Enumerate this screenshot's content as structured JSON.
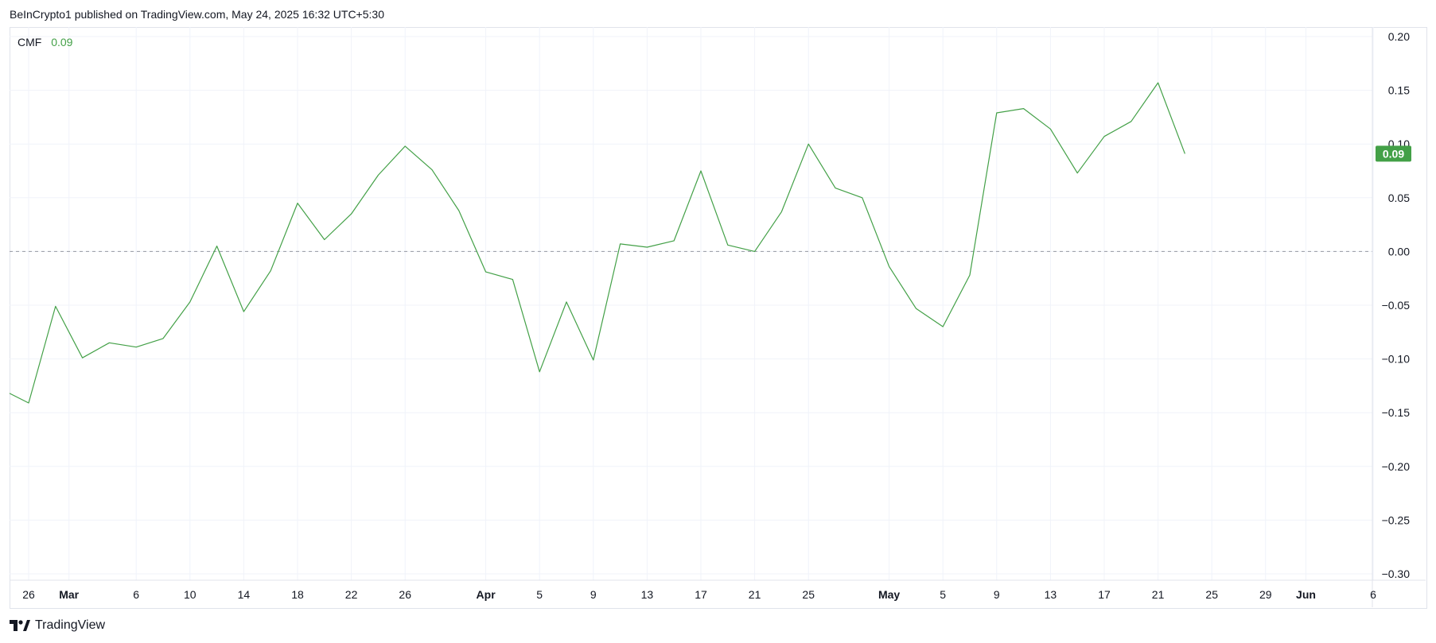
{
  "header": {
    "published": "BeInCrypto1 published on TradingView.com, May 24, 2025 16:32 UTC+5:30"
  },
  "legend": {
    "name": "CMF",
    "value": "0.09"
  },
  "footer": {
    "brand": "TradingView"
  },
  "colors": {
    "line": "#43a047",
    "last_badge": "#43a047",
    "zero_line": "#9598a1",
    "grid": "#f0f3fa"
  },
  "chart_data": {
    "type": "line",
    "title": "",
    "xlabel": "",
    "ylabel": "",
    "ylim": [
      -0.3,
      0.2
    ],
    "y_ticks": [
      "0.20",
      "0.15",
      "0.10",
      "0.05",
      "0.00",
      "−0.05",
      "−0.10",
      "−0.15",
      "−0.20",
      "−0.25",
      "−0.30"
    ],
    "y_tick_values": [
      0.2,
      0.15,
      0.1,
      0.05,
      0.0,
      -0.05,
      -0.1,
      -0.15,
      -0.2,
      -0.25,
      -0.3
    ],
    "x_ticks": [
      {
        "label": "26",
        "date": "2025-02-26",
        "bold": false
      },
      {
        "label": "Mar",
        "date": "2025-03-01",
        "bold": true
      },
      {
        "label": "6",
        "date": "2025-03-06",
        "bold": false
      },
      {
        "label": "10",
        "date": "2025-03-10",
        "bold": false
      },
      {
        "label": "14",
        "date": "2025-03-14",
        "bold": false
      },
      {
        "label": "18",
        "date": "2025-03-18",
        "bold": false
      },
      {
        "label": "22",
        "date": "2025-03-22",
        "bold": false
      },
      {
        "label": "26",
        "date": "2025-03-26",
        "bold": false
      },
      {
        "label": "Apr",
        "date": "2025-04-01",
        "bold": true
      },
      {
        "label": "5",
        "date": "2025-04-05",
        "bold": false
      },
      {
        "label": "9",
        "date": "2025-04-09",
        "bold": false
      },
      {
        "label": "13",
        "date": "2025-04-13",
        "bold": false
      },
      {
        "label": "17",
        "date": "2025-04-17",
        "bold": false
      },
      {
        "label": "21",
        "date": "2025-04-21",
        "bold": false
      },
      {
        "label": "25",
        "date": "2025-04-25",
        "bold": false
      },
      {
        "label": "May",
        "date": "2025-05-01",
        "bold": true
      },
      {
        "label": "5",
        "date": "2025-05-05",
        "bold": false
      },
      {
        "label": "9",
        "date": "2025-05-09",
        "bold": false
      },
      {
        "label": "13",
        "date": "2025-05-13",
        "bold": false
      },
      {
        "label": "17",
        "date": "2025-05-17",
        "bold": false
      },
      {
        "label": "21",
        "date": "2025-05-21",
        "bold": false
      },
      {
        "label": "25",
        "date": "2025-05-25",
        "bold": false
      },
      {
        "label": "29",
        "date": "2025-05-29",
        "bold": false
      },
      {
        "label": "Jun",
        "date": "2025-06-01",
        "bold": true
      },
      {
        "label": "6",
        "date": "2025-06-06",
        "bold": false
      }
    ],
    "x_range": [
      "2025-02-25",
      "2025-06-06"
    ],
    "zero_line": 0.0,
    "last_value_label": "0.09",
    "series": [
      {
        "name": "CMF",
        "color": "#43a047",
        "points": [
          {
            "x": "2025-02-24",
            "y": -0.132
          },
          {
            "x": "2025-02-26",
            "y": -0.141
          },
          {
            "x": "2025-02-28",
            "y": -0.051
          },
          {
            "x": "2025-03-02",
            "y": -0.099
          },
          {
            "x": "2025-03-04",
            "y": -0.085
          },
          {
            "x": "2025-03-06",
            "y": -0.089
          },
          {
            "x": "2025-03-08",
            "y": -0.081
          },
          {
            "x": "2025-03-10",
            "y": -0.047
          },
          {
            "x": "2025-03-12",
            "y": 0.005
          },
          {
            "x": "2025-03-14",
            "y": -0.056
          },
          {
            "x": "2025-03-16",
            "y": -0.018
          },
          {
            "x": "2025-03-18",
            "y": 0.045
          },
          {
            "x": "2025-03-20",
            "y": 0.011
          },
          {
            "x": "2025-03-22",
            "y": 0.035
          },
          {
            "x": "2025-03-24",
            "y": 0.071
          },
          {
            "x": "2025-03-26",
            "y": 0.098
          },
          {
            "x": "2025-03-28",
            "y": 0.076
          },
          {
            "x": "2025-03-30",
            "y": 0.038
          },
          {
            "x": "2025-04-01",
            "y": -0.019
          },
          {
            "x": "2025-04-03",
            "y": -0.026
          },
          {
            "x": "2025-04-05",
            "y": -0.112
          },
          {
            "x": "2025-04-07",
            "y": -0.047
          },
          {
            "x": "2025-04-09",
            "y": -0.101
          },
          {
            "x": "2025-04-11",
            "y": 0.007
          },
          {
            "x": "2025-04-13",
            "y": 0.004
          },
          {
            "x": "2025-04-15",
            "y": 0.01
          },
          {
            "x": "2025-04-17",
            "y": 0.075
          },
          {
            "x": "2025-04-19",
            "y": 0.006
          },
          {
            "x": "2025-04-21",
            "y": 0.0
          },
          {
            "x": "2025-04-23",
            "y": 0.037
          },
          {
            "x": "2025-04-25",
            "y": 0.1
          },
          {
            "x": "2025-04-27",
            "y": 0.059
          },
          {
            "x": "2025-04-29",
            "y": 0.05
          },
          {
            "x": "2025-05-01",
            "y": -0.014
          },
          {
            "x": "2025-05-03",
            "y": -0.053
          },
          {
            "x": "2025-05-05",
            "y": -0.07
          },
          {
            "x": "2025-05-07",
            "y": -0.022
          },
          {
            "x": "2025-05-09",
            "y": 0.129
          },
          {
            "x": "2025-05-11",
            "y": 0.133
          },
          {
            "x": "2025-05-13",
            "y": 0.114
          },
          {
            "x": "2025-05-15",
            "y": 0.073
          },
          {
            "x": "2025-05-17",
            "y": 0.107
          },
          {
            "x": "2025-05-19",
            "y": 0.121
          },
          {
            "x": "2025-05-21",
            "y": 0.157
          },
          {
            "x": "2025-05-23",
            "y": 0.091
          }
        ]
      }
    ]
  }
}
